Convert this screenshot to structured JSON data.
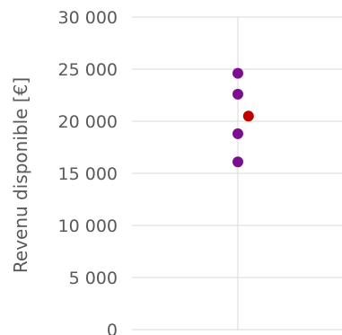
{
  "chart_data": {
    "type": "scatter",
    "title": "",
    "xlabel": "",
    "ylabel": "Revenu disponible [€]",
    "ylim": [
      0,
      30000
    ],
    "yticks": [
      0,
      5000,
      10000,
      15000,
      20000,
      25000,
      30000
    ],
    "ytick_labels": [
      "0",
      "5 000",
      "10 000",
      "15 000",
      "20 000",
      "25 000",
      "30 000"
    ],
    "grid": true,
    "series": [
      {
        "color": "#7b0f8f",
        "points": [
          {
            "x": 0,
            "y": 24600
          },
          {
            "x": 0,
            "y": 22600
          },
          {
            "x": 0,
            "y": 18800
          },
          {
            "x": 0,
            "y": 16100
          }
        ]
      },
      {
        "color": "#c00000",
        "points": [
          {
            "x": 0.1,
            "y": 20500
          }
        ]
      }
    ]
  }
}
